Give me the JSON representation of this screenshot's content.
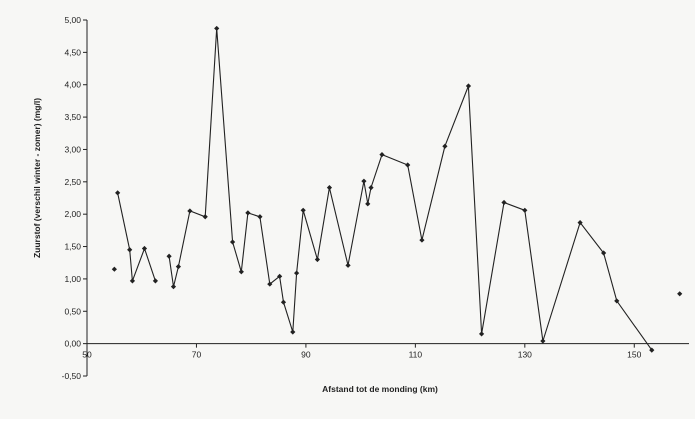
{
  "chart_data": {
    "type": "line",
    "title": "",
    "xlabel": "Afstand tot de monding (km)",
    "ylabel": "Zuurstof (verschil winter - zomer) (mg/l)",
    "xlim": [
      50,
      160
    ],
    "ylim": [
      -0.5,
      5.0
    ],
    "x_ticks": [
      "50",
      "70",
      "90",
      "110",
      "130",
      "150"
    ],
    "x_tick_values": [
      50,
      70,
      90,
      110,
      130,
      150
    ],
    "y_ticks": [
      "-0,50",
      "0,00",
      "0,50",
      "1,00",
      "1,50",
      "2,00",
      "2,50",
      "3,00",
      "3,50",
      "4,00",
      "4,50",
      "5,00"
    ],
    "y_tick_values": [
      -0.5,
      0,
      0.5,
      1.0,
      1.5,
      2.0,
      2.5,
      3.0,
      3.5,
      4.0,
      4.5,
      5.0
    ],
    "grid": false,
    "marker": "diamond",
    "line_color": "#222222",
    "series_segments": [
      [
        [
          55.0,
          1.15
        ]
      ],
      [
        [
          55.6,
          2.33
        ],
        [
          57.8,
          1.45
        ],
        [
          58.3,
          0.97
        ],
        [
          60.5,
          1.47
        ],
        [
          62.5,
          0.97
        ]
      ],
      [
        [
          65.0,
          1.35
        ],
        [
          65.8,
          0.88
        ],
        [
          66.7,
          1.19
        ],
        [
          68.8,
          2.05
        ],
        [
          71.6,
          1.96
        ],
        [
          73.7,
          4.87
        ],
        [
          76.6,
          1.57
        ],
        [
          78.2,
          1.11
        ],
        [
          79.4,
          2.02
        ],
        [
          81.6,
          1.96
        ],
        [
          83.4,
          0.92
        ],
        [
          85.2,
          1.04
        ],
        [
          85.9,
          0.64
        ],
        [
          87.6,
          0.18
        ],
        [
          88.3,
          1.09
        ],
        [
          89.5,
          2.06
        ],
        [
          92.1,
          1.3
        ],
        [
          94.3,
          2.41
        ],
        [
          97.7,
          1.21
        ],
        [
          100.6,
          2.51
        ],
        [
          101.3,
          2.16
        ],
        [
          101.9,
          2.41
        ],
        [
          103.9,
          2.92
        ],
        [
          108.6,
          2.76
        ],
        [
          111.2,
          1.6
        ],
        [
          115.4,
          3.05
        ],
        [
          119.7,
          3.98
        ],
        [
          122.1,
          0.15
        ],
        [
          126.2,
          2.18
        ],
        [
          130.0,
          2.06
        ],
        [
          133.3,
          0.04
        ],
        [
          140.1,
          1.87
        ],
        [
          144.4,
          1.4
        ],
        [
          146.8,
          0.66
        ],
        [
          153.2,
          -0.1
        ]
      ],
      [
        [
          158.3,
          0.77
        ]
      ]
    ]
  }
}
